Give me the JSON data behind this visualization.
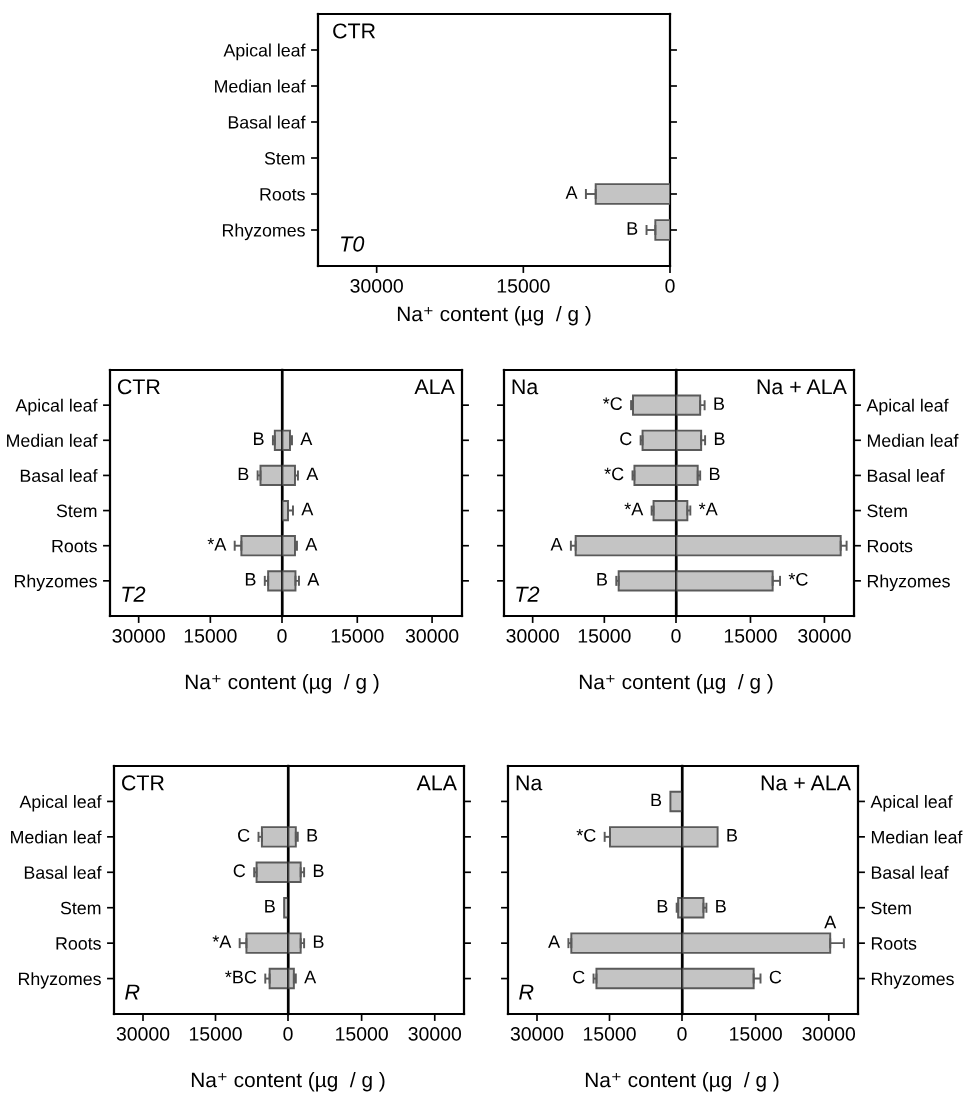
{
  "chart_data": [
    {
      "type": "bar",
      "orientation": "horizontal",
      "categories": [
        "Apical leaf",
        "Median leaf",
        "Basal leaf",
        "Stem",
        "Roots",
        "Rhyzomes"
      ],
      "series": [
        {
          "color": "#c4c4c4",
          "values": [
            null,
            null,
            null,
            null,
            7600,
            1500
          ],
          "errors": [
            null,
            null,
            null,
            null,
            [
              7600,
              8600
            ],
            [
              1500,
              2400
            ]
          ]
        }
      ],
      "xlim": [
        36000,
        0
      ],
      "xticks": [
        30000,
        15000,
        0
      ],
      "xlabel": "Na⁺ content (µg  / g )",
      "annotations": [
        "CTR",
        "T0",
        {
          "text": "A",
          "x": 7600,
          "y": "Roots"
        },
        {
          "text": "B",
          "x": 1500,
          "y": "Rhyzomes"
        }
      ]
    },
    {
      "type": "bar",
      "orientation": "horizontal",
      "categories": [
        "Apical leaf",
        "Median leaf",
        "Basal leaf",
        "Stem",
        "Roots",
        "Rhyzomes"
      ],
      "series": [
        {
          "color": "#c4c4c4",
          "values": [
            null,
            1500,
            4500,
            null,
            8500,
            2900
          ],
          "errors": [
            null,
            [
              1500,
              1900
            ],
            [
              4500,
              5100
            ],
            null,
            [
              8500,
              9900
            ],
            [
              2900,
              3600
            ]
          ]
        }
      ],
      "xlim": [
        36000,
        0
      ],
      "xticks": [
        30000,
        15000,
        0
      ],
      "xlabel": "Na⁺ content (µg  / g )",
      "annotations": [
        "CTR",
        "T2",
        {
          "text": "B",
          "x": 1500,
          "y": "Median leaf"
        },
        {
          "text": "B",
          "x": 4500,
          "y": "Basal leaf"
        },
        {
          "text": "*A",
          "x": 8500,
          "y": "Roots"
        },
        {
          "text": "B",
          "x": 2900,
          "y": "Rhyzomes"
        }
      ]
    },
    {
      "type": "bar",
      "orientation": "horizontal",
      "categories": [
        "Apical leaf",
        "Median leaf",
        "Basal leaf",
        "Stem",
        "Roots",
        "Rhyzomes"
      ],
      "series": [
        {
          "color": "#c4c4c4",
          "values": [
            null,
            1500,
            2500,
            1100,
            2500,
            2600
          ],
          "errors": [
            null,
            [
              1500,
              1900
            ],
            [
              2500,
              3100
            ],
            [
              1100,
              2100
            ],
            [
              2500,
              2900
            ],
            [
              2600,
              3300
            ]
          ]
        }
      ],
      "xlim": [
        0,
        36000
      ],
      "xticks": [
        15000,
        30000
      ],
      "tick_labels": "x",
      "annotations": [
        "ALA",
        {
          "text": "A",
          "x": 1500,
          "y": "Median leaf"
        },
        {
          "text": "A",
          "x": 2500,
          "y": "Basal leaf"
        },
        {
          "text": "A",
          "x": 1100,
          "y": "Stem"
        },
        {
          "text": "A",
          "x": 2500,
          "y": "Roots"
        },
        {
          "text": "A",
          "x": 2600,
          "y": "Rhyzomes"
        }
      ]
    },
    {
      "type": "bar",
      "orientation": "horizontal",
      "categories": [
        "Apical leaf",
        "Median leaf",
        "Basal leaf",
        "Stem",
        "Roots",
        "Rhyzomes"
      ],
      "series": [
        {
          "color": "#c4c4c4",
          "values": [
            9000,
            7000,
            8700,
            4700,
            21000,
            12000
          ],
          "errors": [
            [
              9000,
              9400
            ],
            [
              7000,
              7400
            ],
            [
              8700,
              9100
            ],
            [
              4700,
              5100
            ],
            [
              21000,
              22000
            ],
            [
              12000,
              12500
            ]
          ]
        }
      ],
      "xlim": [
        36000,
        0
      ],
      "xticks": [
        30000,
        15000,
        0
      ],
      "tick_labels": "x",
      "xlabel": "Na⁺ content (µg  / g )",
      "annotations": [
        "Na",
        "T2",
        {
          "text": "*C",
          "x": 9000,
          "y": "Apical leaf"
        },
        {
          "text": "C",
          "x": 7000,
          "y": "Median leaf"
        },
        {
          "text": "*C",
          "x": 8700,
          "y": "Basal leaf"
        },
        {
          "text": "*A",
          "x": 4700,
          "y": "Stem"
        },
        {
          "text": "A",
          "x": 21000,
          "y": "Roots"
        },
        {
          "text": "B",
          "x": 12000,
          "y": "Rhyzomes"
        }
      ]
    },
    {
      "type": "bar",
      "orientation": "horizontal",
      "categories": [
        "Apical leaf",
        "Median leaf",
        "Basal leaf",
        "Stem",
        "Roots",
        "Rhyzomes"
      ],
      "series": [
        {
          "color": "#c4c4c4",
          "values": [
            4800,
            5000,
            4300,
            2200,
            33300,
            19500
          ],
          "errors": [
            [
              4800,
              5700
            ],
            [
              5000,
              5800
            ],
            [
              4300,
              4800
            ],
            [
              2200,
              2800
            ],
            [
              33300,
              34500
            ],
            [
              19500,
              21000
            ]
          ]
        }
      ],
      "xlim": [
        0,
        36000
      ],
      "xticks": [
        15000,
        30000
      ],
      "annotations": [
        "Na + ALA",
        {
          "text": "B",
          "x": 4800,
          "y": "Apical leaf"
        },
        {
          "text": "B",
          "x": 5000,
          "y": "Median leaf"
        },
        {
          "text": "B",
          "x": 4300,
          "y": "Basal leaf"
        },
        {
          "text": "*A",
          "x": 2200,
          "y": "Stem"
        },
        {
          "text": "*C",
          "x": 19500,
          "y": "Rhyzomes"
        }
      ]
    },
    {
      "type": "bar",
      "orientation": "horizontal",
      "categories": [
        "Apical leaf",
        "Median leaf",
        "Basal leaf",
        "Stem",
        "Roots",
        "Rhyzomes"
      ],
      "series": [
        {
          "color": "#c4c4c4",
          "values": [
            null,
            5400,
            6500,
            800,
            8600,
            3800
          ],
          "errors": [
            null,
            [
              5400,
              6100
            ],
            [
              6500,
              7000
            ],
            null,
            [
              8600,
              10000
            ],
            [
              3800,
              4700
            ]
          ]
        }
      ],
      "xlim": [
        36000,
        0
      ],
      "xticks": [
        30000,
        15000,
        0
      ],
      "xlabel": "Na⁺ content (µg  / g )",
      "annotations": [
        "CTR",
        "R",
        {
          "text": "C",
          "x": 5400,
          "y": "Median leaf"
        },
        {
          "text": "C",
          "x": 6500,
          "y": "Basal leaf"
        },
        {
          "text": "B",
          "x": 800,
          "y": "Stem"
        },
        {
          "text": "*A",
          "x": 8600,
          "y": "Roots"
        },
        {
          "text": "*BC",
          "x": 3800,
          "y": "Rhyzomes"
        }
      ]
    },
    {
      "type": "bar",
      "orientation": "horizontal",
      "categories": [
        "Apical leaf",
        "Median leaf",
        "Basal leaf",
        "Stem",
        "Roots",
        "Rhyzomes"
      ],
      "series": [
        {
          "color": "#c4c4c4",
          "values": [
            null,
            1500,
            2500,
            null,
            2500,
            1100
          ],
          "errors": [
            null,
            [
              1500,
              1900
            ],
            [
              2500,
              3200
            ],
            null,
            [
              2500,
              3200
            ],
            [
              1100,
              1500
            ]
          ]
        }
      ],
      "xlim": [
        0,
        36000
      ],
      "xticks": [
        15000,
        30000
      ],
      "tick_labels": "x",
      "annotations": [
        "ALA",
        {
          "text": "B",
          "x": 1500,
          "y": "Median leaf"
        },
        {
          "text": "B",
          "x": 2500,
          "y": "Basal leaf"
        },
        {
          "text": "B",
          "x": 2500,
          "y": "Roots"
        },
        {
          "text": "A",
          "x": 1100,
          "y": "Rhyzomes"
        }
      ]
    },
    {
      "type": "bar",
      "orientation": "horizontal",
      "categories": [
        "Apical leaf",
        "Median leaf",
        "Basal leaf",
        "Stem",
        "Roots",
        "Rhyzomes"
      ],
      "series": [
        {
          "color": "#c4c4c4",
          "values": [
            2400,
            14900,
            null,
            800,
            22900,
            17700
          ],
          "errors": [
            null,
            [
              14900,
              16000
            ],
            null,
            [
              800,
              1100
            ],
            [
              22900,
              23500
            ],
            [
              17700,
              18300
            ]
          ]
        }
      ],
      "xlim": [
        36000,
        0
      ],
      "xticks": [
        30000,
        15000,
        0
      ],
      "tick_labels": "x",
      "xlabel": "Na⁺ content (µg  / g )",
      "annotations": [
        "Na",
        "R",
        {
          "text": "B",
          "x": 2400,
          "y": "Apical leaf"
        },
        {
          "text": "*C",
          "x": 14900,
          "y": "Median leaf"
        },
        {
          "text": "B",
          "x": 800,
          "y": "Stem"
        },
        {
          "text": "A",
          "x": 22900,
          "y": "Roots"
        },
        {
          "text": "C",
          "x": 17700,
          "y": "Rhyzomes"
        }
      ]
    },
    {
      "type": "bar",
      "orientation": "horizontal",
      "categories": [
        "Apical leaf",
        "Median leaf",
        "Basal leaf",
        "Stem",
        "Roots",
        "Rhyzomes"
      ],
      "series": [
        {
          "color": "#c4c4c4",
          "values": [
            null,
            7200,
            null,
            4300,
            30300,
            14600
          ],
          "errors": [
            null,
            null,
            null,
            [
              4300,
              4900
            ],
            [
              30300,
              33100
            ],
            [
              14600,
              16000
            ]
          ]
        }
      ],
      "xlim": [
        0,
        36000
      ],
      "xticks": [
        15000,
        30000
      ],
      "annotations": [
        "Na + ALA",
        {
          "text": "B",
          "x": 7200,
          "y": "Median leaf"
        },
        {
          "text": "B",
          "x": 4300,
          "y": "Stem"
        },
        {
          "text": "A",
          "x": 30300,
          "y": "Roots"
        },
        {
          "text": "C",
          "x": 14600,
          "y": "Rhyzomes"
        }
      ]
    }
  ]
}
